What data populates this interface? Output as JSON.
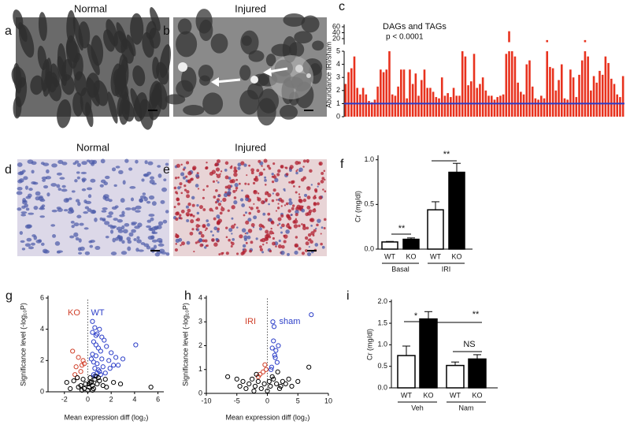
{
  "images": [
    {
      "label": "a",
      "title": "Normal"
    },
    {
      "label": "b",
      "title": "Injured"
    },
    {
      "label": "d",
      "title": "Normal"
    },
    {
      "label": "e",
      "title": "Injured"
    }
  ],
  "chart_data": [
    {
      "type": "bar",
      "label": "c",
      "ylabel": "Abundance IRI/sham",
      "annotations": [
        "DAGs and TAGs",
        "p < 0.0001"
      ],
      "color": "#e8321e",
      "hline": 1,
      "hline_color": "#2a3cc8",
      "values": [
        2.5,
        3.4,
        3.7,
        4.6,
        2.2,
        1.7,
        2.2,
        1.7,
        1.2,
        1.1,
        1.3,
        2.3,
        3.6,
        3.4,
        3.6,
        5,
        1.7,
        1.6,
        2.3,
        3.6,
        3.6,
        1.4,
        3.6,
        2.5,
        3.3,
        1.6,
        2.8,
        3.6,
        2.2,
        2.2,
        1.9,
        1.5,
        1.4,
        3.0,
        1.6,
        1.8,
        1.5,
        2.2,
        1.6,
        1.6,
        5,
        4.6,
        2.4,
        2.7,
        4.8,
        2.2,
        2.5,
        3.0,
        2.0,
        1.6,
        1.6,
        1.3,
        1.5,
        1.6,
        1.7,
        4.8,
        45,
        5,
        4.6,
        2.6,
        1.9,
        1.7,
        4.0,
        4.3,
        2.3,
        1.4,
        1.3,
        1.6,
        1.4,
        15,
        3.8,
        3.7,
        2.0,
        2.8,
        4.0,
        1.4,
        1.3,
        3.6,
        3.0,
        1.5,
        3.2,
        4.3,
        15,
        4.6,
        2.0,
        3.1,
        2.6,
        3.5,
        3.2,
        4.6,
        4.1,
        2.9,
        2.5,
        1.7,
        1.5,
        3.1
      ],
      "ylim": [
        0,
        60
      ],
      "y_break": 5,
      "yticks": [
        0,
        1,
        2,
        3,
        4,
        5,
        20,
        40,
        60
      ]
    },
    {
      "type": "bar",
      "label": "f",
      "ylabel": "Cr (mg/dl)",
      "categories": [
        "Basal",
        "IRI"
      ],
      "series": [
        {
          "name": "WT",
          "color": "#ffffff",
          "values": [
            0.08,
            0.44
          ],
          "errors": [
            0.006,
            0.09
          ]
        },
        {
          "name": "KO",
          "color": "#000000",
          "values": [
            0.11,
            0.86
          ],
          "errors": [
            0.015,
            0.1
          ]
        }
      ],
      "annotations": [
        "**",
        "**"
      ],
      "ylim": [
        0,
        1.05
      ],
      "yticks": [
        {
          "value": 0,
          "label": "0.0"
        },
        {
          "value": 0.5,
          "label": "0.5"
        },
        {
          "value": 1,
          "label": "1.0"
        }
      ]
    },
    {
      "type": "scatter",
      "label": "g",
      "xlabel": "Mean expression diff (log₂)",
      "ylabel": "Significance level (-log₁₀P)",
      "vline": 0,
      "series": [
        {
          "name": "KO",
          "color": "#d0402a",
          "x": [
            -1.3,
            -0.8,
            -1.0,
            -0.5,
            -0.6,
            -1.1,
            -0.3,
            -0.9,
            -0.4
          ],
          "values": [
            2.6,
            2.2,
            1.6,
            1.7,
            1.3,
            1.1,
            1.8,
            0.9,
            2.0
          ]
        },
        {
          "name": "WT",
          "color": "#2c3ec8",
          "x": [
            0.4,
            0.6,
            0.8,
            1.0,
            1.2,
            0.5,
            0.7,
            0.9,
            1.1,
            1.4,
            1.6,
            2.0,
            2.4,
            0.3,
            0.5,
            0.8,
            1.3,
            1.8,
            2.2,
            3.0,
            4.1,
            0.6,
            0.9,
            1.0,
            1.5,
            0.4,
            0.7,
            1.2,
            0.5,
            0.6,
            0.8,
            1.1,
            1.9,
            2.6,
            0.4,
            0.7
          ],
          "values": [
            4.5,
            4.1,
            3.7,
            4.0,
            3.5,
            3.2,
            3.0,
            2.8,
            2.6,
            3.3,
            2.9,
            2.5,
            2.2,
            2.1,
            1.9,
            1.8,
            1.6,
            2.0,
            1.7,
            2.1,
            3.0,
            1.5,
            1.4,
            1.3,
            1.2,
            2.4,
            2.3,
            2.1,
            1.1,
            1.0,
            1.2,
            1.1,
            1.5,
            1.7,
            3.8,
            3.6
          ]
        },
        {
          "color": "#000000",
          "x": [
            -1.8,
            -1.2,
            -0.9,
            -0.6,
            -0.4,
            -0.2,
            0.1,
            0.2,
            0.3,
            0.5,
            0.6,
            0.8,
            1.0,
            1.3,
            1.6,
            2.2,
            2.8,
            -0.3,
            0,
            0.4,
            0.7,
            -0.8,
            -0.5,
            0.2,
            0.9,
            1.5,
            5.4,
            -1.5,
            0.1,
            0.4
          ],
          "values": [
            0.6,
            0.7,
            0.9,
            0.4,
            0.8,
            0.5,
            0.3,
            0.9,
            0.6,
            0.2,
            0.8,
            0.5,
            0.7,
            0.4,
            0.3,
            0.6,
            0.5,
            0.2,
            0.1,
            0.4,
            1.0,
            0.3,
            0.1,
            0.6,
            0.9,
            0.8,
            0.3,
            0.2,
            0.5,
            0.1
          ]
        }
      ],
      "xlim": [
        -3.4,
        6.5
      ],
      "xticks": [
        -2,
        0,
        2,
        4,
        6
      ],
      "ylim": [
        0,
        6
      ],
      "yticks": [
        0,
        2,
        4,
        6
      ]
    },
    {
      "type": "scatter",
      "label": "h",
      "xlabel": "Mean expression diff (log₂)",
      "ylabel": "Significance level (-log₁₀P)",
      "vline": 0,
      "series": [
        {
          "name": "IRI",
          "color": "#d0402a",
          "x": [
            -1.2,
            -0.7,
            -0.4,
            -1.5,
            -0.2
          ],
          "values": [
            0.8,
            0.9,
            1.2,
            0.7,
            1.0
          ]
        },
        {
          "name": "sham",
          "color": "#2c3ec8",
          "x": [
            0.9,
            1.1,
            0.8,
            1.4,
            1.2,
            1.6,
            0.7,
            1.0,
            1.8,
            7.2,
            0.6,
            1.3
          ],
          "values": [
            3.0,
            2.8,
            1.9,
            1.8,
            1.6,
            1.3,
            1.1,
            2.2,
            2.0,
            3.3,
            1.0,
            1.5
          ]
        },
        {
          "color": "#000000",
          "x": [
            -6.5,
            -5,
            -4,
            -3,
            -2.5,
            -2,
            -1.5,
            -1,
            -0.5,
            0,
            0.5,
            1,
            1.5,
            2,
            2.5,
            3,
            4,
            5,
            6.8,
            -3.5,
            -1.8,
            0.3,
            1.7,
            3.5,
            -4.5,
            -2.2,
            0.8,
            2.2
          ],
          "values": [
            0.7,
            0.6,
            0.5,
            0.4,
            0.6,
            0.3,
            0.5,
            0.2,
            0.4,
            0.1,
            0.3,
            0.6,
            0.4,
            0.2,
            0.5,
            0.4,
            0.3,
            0.5,
            1.1,
            0.2,
            0.8,
            0.5,
            0.9,
            0.6,
            0.3,
            0.1,
            0.7,
            0.3
          ]
        }
      ],
      "xlim": [
        -10,
        10
      ],
      "xticks": [
        -10,
        -5,
        0,
        5,
        10
      ],
      "ylim": [
        0,
        4
      ],
      "yticks": [
        0,
        1,
        2,
        3,
        4
      ]
    },
    {
      "type": "bar",
      "label": "i",
      "ylabel": "Cr (mg/dl)",
      "categories": [
        "Veh",
        "Nam"
      ],
      "series": [
        {
          "name": "WT",
          "color": "#ffffff",
          "values": [
            0.75,
            0.52
          ],
          "errors": [
            0.22,
            0.08
          ]
        },
        {
          "name": "KO",
          "color": "#000000",
          "values": [
            1.6,
            0.67
          ],
          "errors": [
            0.17,
            0.1
          ]
        }
      ],
      "annotations": [
        "*",
        "**",
        "NS"
      ],
      "ylim": [
        0,
        2.05
      ],
      "yticks": [
        {
          "value": 0,
          "label": "0.0"
        },
        {
          "value": 0.5,
          "label": "0.5"
        },
        {
          "value": 1,
          "label": "1.0"
        },
        {
          "value": 1.5,
          "label": "1.5"
        },
        {
          "value": 2,
          "label": "2.0"
        }
      ]
    }
  ]
}
